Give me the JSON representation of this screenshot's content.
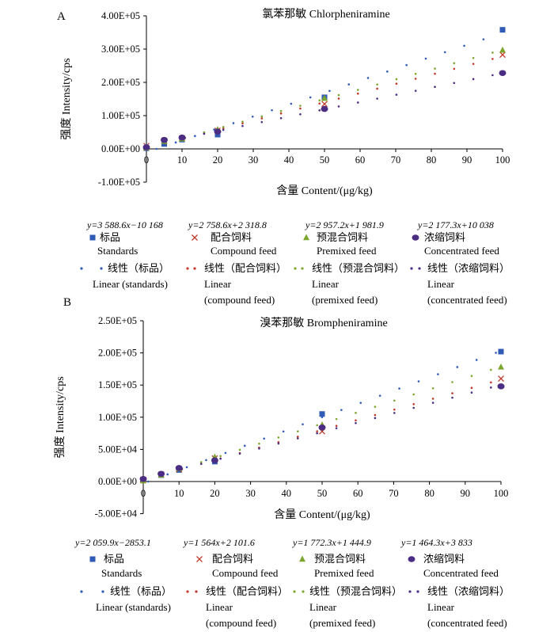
{
  "colors": {
    "standards": "#2f5bb6",
    "compound": "#c0392b",
    "premixed": "#7ca62e",
    "concentrated": "#4b2e83"
  },
  "chart_data": [
    {
      "type": "scatter",
      "panel_letter": "A",
      "title": "氯苯那敏  Chlorpheniramine",
      "xlabel": "含量  Content/(μg/kg)",
      "ylabel": "强度  Intensity/cps",
      "xlim": [
        0,
        100
      ],
      "ylim": [
        -100000,
        400000
      ],
      "xticks": [
        0,
        10,
        20,
        30,
        40,
        50,
        60,
        70,
        80,
        90,
        100
      ],
      "xtick_labels": [
        "0",
        "10",
        "20",
        "30",
        "40",
        "50",
        "60",
        "70",
        "80",
        "90",
        "100"
      ],
      "yticks": [
        -100000,
        0,
        100000,
        200000,
        300000,
        400000
      ],
      "ytick_labels": [
        "-1.00E+05",
        "0.00E+00",
        "1.00E+05",
        "2.00E+05",
        "3.00E+05",
        "4.00E+05"
      ],
      "grid": false,
      "legend_position": "bottom",
      "series": [
        {
          "name": "标品 Standards",
          "marker": "square",
          "x": [
            0,
            5,
            10,
            20,
            50,
            100
          ],
          "y": [
            2000,
            15000,
            28000,
            43000,
            155000,
            358000
          ],
          "fit": {
            "slope": 3588.6,
            "intercept": -10168
          }
        },
        {
          "name": "配合饲料 Compound feed",
          "marker": "x",
          "x": [
            0,
            5,
            10,
            20,
            50,
            100
          ],
          "y": [
            9000,
            25000,
            32000,
            55000,
            135000,
            283000
          ],
          "fit": {
            "slope": 2758.6,
            "intercept": 2318.8
          }
        },
        {
          "name": "预混合饲料 Premixed feed",
          "marker": "triangle",
          "x": [
            0,
            5,
            10,
            20,
            50,
            100
          ],
          "y": [
            3000,
            23000,
            30000,
            58000,
            152000,
            297000
          ],
          "fit": {
            "slope": 2957.2,
            "intercept": 1981.9
          }
        },
        {
          "name": "浓缩饲料 Concentrated feed",
          "marker": "circle",
          "x": [
            0,
            5,
            10,
            20,
            50,
            100
          ],
          "y": [
            5000,
            27000,
            34000,
            52000,
            120000,
            228000
          ],
          "fit": {
            "slope": 2177.3,
            "intercept": 10038
          }
        }
      ],
      "legend_entries": [
        {
          "equation": "y=3 588.6x−10 168",
          "name_cn": "标品",
          "name_en": "Standards",
          "linear_cn": "线性（标品）",
          "linear_en": [
            "Linear (standards)"
          ]
        },
        {
          "equation": "y=2 758.6x+2 318.8",
          "name_cn": "配合饲料",
          "name_en": "Compound feed",
          "linear_cn": "线性（配合饲料）",
          "linear_en": [
            "Linear",
            "(compound feed)"
          ]
        },
        {
          "equation": "y=2 957.2x+1 981.9",
          "name_cn": "预混合饲料",
          "name_en": "Premixed feed",
          "linear_cn": "线性（预混合饲料）",
          "linear_en": [
            "Linear",
            "(premixed feed)"
          ]
        },
        {
          "equation": "y=2 177.3x+10 038",
          "name_cn": "浓缩饲料",
          "name_en": "Concentrated feed",
          "linear_cn": "线性（浓缩饲料）",
          "linear_en": [
            "Linear",
            "(concentrated feed)"
          ]
        }
      ]
    },
    {
      "type": "scatter",
      "panel_letter": "B",
      "title": "溴苯那敏  Brompheniramine",
      "xlabel": "含量  Content/(μg/kg)",
      "ylabel": "强度  Intensity/cps",
      "xlim": [
        0,
        100
      ],
      "ylim": [
        -50000,
        250000
      ],
      "xticks": [
        0,
        10,
        20,
        30,
        40,
        50,
        60,
        70,
        80,
        90,
        100
      ],
      "xtick_labels": [
        "0",
        "10",
        "20",
        "30",
        "40",
        "50",
        "60",
        "70",
        "80",
        "90",
        "100"
      ],
      "yticks": [
        -50000,
        0,
        50000,
        100000,
        150000,
        200000,
        250000
      ],
      "ytick_labels": [
        "-5.00E+04",
        "0.00E+00",
        "5.00E+04",
        "1.00E+05",
        "1.50E+05",
        "2.00E+05",
        "2.50E+05"
      ],
      "grid": false,
      "legend_position": "bottom",
      "series": [
        {
          "name": "标品 Standards",
          "marker": "square",
          "x": [
            0,
            5,
            10,
            20,
            50,
            100
          ],
          "y": [
            2000,
            10000,
            18000,
            31000,
            105000,
            202000
          ],
          "fit": {
            "slope": 2059.9,
            "intercept": -2853.1
          }
        },
        {
          "name": "配合饲料 Compound feed",
          "marker": "x",
          "x": [
            0,
            5,
            10,
            20,
            50,
            100
          ],
          "y": [
            3000,
            11000,
            19000,
            36000,
            78000,
            160000
          ],
          "fit": {
            "slope": 1564,
            "intercept": 2101.6
          }
        },
        {
          "name": "预混合饲料 Premixed feed",
          "marker": "triangle",
          "x": [
            0,
            5,
            10,
            20,
            50,
            100
          ],
          "y": [
            1000,
            10000,
            20000,
            38000,
            88000,
            178000
          ],
          "fit": {
            "slope": 1772.3,
            "intercept": 1444.9
          }
        },
        {
          "name": "浓缩饲料 Concentrated feed",
          "marker": "circle",
          "x": [
            0,
            5,
            10,
            20,
            50,
            100
          ],
          "y": [
            4000,
            12000,
            21000,
            33000,
            84000,
            148000
          ],
          "fit": {
            "slope": 1464.3,
            "intercept": 3833
          }
        }
      ],
      "legend_entries": [
        {
          "equation": "y=2 059.9x−2853.1",
          "name_cn": "标品",
          "name_en": "Standards",
          "linear_cn": "线性（标品）",
          "linear_en": [
            "Linear (standards)"
          ]
        },
        {
          "equation": "y=1 564x+2 101.6",
          "name_cn": "配合饲料",
          "name_en": "Compound feed",
          "linear_cn": "线性（配合饲料）",
          "linear_en": [
            "Linear",
            "(compound feed)"
          ]
        },
        {
          "equation": "y=1 772.3x+1 444.9",
          "name_cn": "预混合饲料",
          "name_en": "Premixed feed",
          "linear_cn": "线性（预混合饲料）",
          "linear_en": [
            "Linear",
            "(premixed feed)"
          ]
        },
        {
          "equation": "y=1 464.3x+3 833",
          "name_cn": "浓缩饲料",
          "name_en": "Concentrated feed",
          "linear_cn": "线性（浓缩饲料）",
          "linear_en": [
            "Linear",
            "(concentrated feed)"
          ]
        }
      ]
    }
  ]
}
